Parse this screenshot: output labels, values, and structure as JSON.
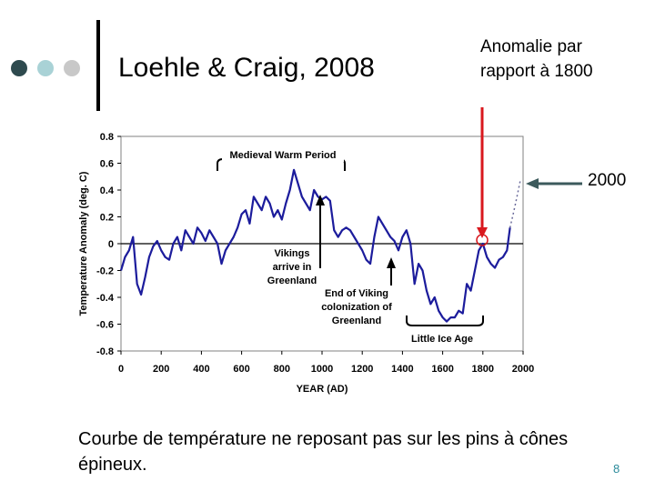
{
  "slide": {
    "title": "Loehle & Craig, 2008",
    "anomaly_note": "Anomalie par rapport à 1800",
    "label_2000": "2000",
    "caption": "Courbe de température ne reposant pas sur les pins à cônes épineux.",
    "page_number": "8",
    "dot_colors": [
      "#2e4a4e",
      "#a9d2d6",
      "#c8c8c8"
    ],
    "accent_color": "#d9181e",
    "arrow_color": "#3c5a5c"
  },
  "chart_data": {
    "type": "line",
    "title": "",
    "xlabel": "YEAR (AD)",
    "ylabel": "Temperature Anomaly (deg. C)",
    "xlim": [
      0,
      2000
    ],
    "ylim": [
      -0.8,
      0.8
    ],
    "x_ticks": [
      "0",
      "200",
      "400",
      "600",
      "800",
      "1000",
      "1200",
      "1400",
      "1600",
      "1800",
      "2000"
    ],
    "y_ticks": [
      "0.8",
      "0.6",
      "0.4",
      "0.2",
      "0",
      "-0.2",
      "-0.4",
      "-0.6",
      "-0.8"
    ],
    "grid": false,
    "line_color": "#1c1c9c",
    "series": [
      {
        "x": [
          0,
          20,
          40,
          60,
          80,
          100,
          120,
          140,
          160,
          180,
          200,
          220,
          240,
          260,
          280,
          300,
          320,
          340,
          360,
          380,
          400,
          420,
          440,
          460,
          480,
          500,
          520,
          540,
          560,
          580,
          600,
          620,
          640,
          660,
          680,
          700,
          720,
          740,
          760,
          780,
          800,
          820,
          840,
          860,
          880,
          900,
          920,
          940,
          960,
          980,
          1000,
          1020,
          1040,
          1060,
          1080,
          1100,
          1120,
          1140,
          1160,
          1180,
          1200,
          1220,
          1240,
          1260,
          1280,
          1300,
          1320,
          1340,
          1360,
          1380,
          1400,
          1420,
          1440,
          1460,
          1480,
          1500,
          1520,
          1540,
          1560,
          1580,
          1600,
          1620,
          1640,
          1660,
          1680,
          1700,
          1720,
          1740,
          1760,
          1780,
          1800,
          1820,
          1840,
          1860,
          1880,
          1900,
          1920,
          1935
        ],
        "y": [
          -0.2,
          -0.1,
          -0.05,
          0.05,
          -0.3,
          -0.38,
          -0.25,
          -0.1,
          -0.02,
          0.02,
          -0.05,
          -0.1,
          -0.12,
          0.0,
          0.05,
          -0.05,
          0.1,
          0.05,
          0.0,
          0.12,
          0.08,
          0.02,
          0.1,
          0.05,
          0.0,
          -0.15,
          -0.05,
          0.0,
          0.05,
          0.12,
          0.22,
          0.25,
          0.15,
          0.35,
          0.3,
          0.25,
          0.35,
          0.3,
          0.2,
          0.25,
          0.18,
          0.3,
          0.4,
          0.55,
          0.45,
          0.35,
          0.3,
          0.25,
          0.4,
          0.35,
          0.33,
          0.35,
          0.32,
          0.1,
          0.05,
          0.1,
          0.12,
          0.1,
          0.05,
          0.0,
          -0.05,
          -0.12,
          -0.15,
          0.05,
          0.2,
          0.15,
          0.1,
          0.05,
          0.02,
          -0.05,
          0.05,
          0.1,
          0.0,
          -0.3,
          -0.15,
          -0.2,
          -0.35,
          -0.45,
          -0.4,
          -0.5,
          -0.55,
          -0.58,
          -0.55,
          -0.55,
          -0.5,
          -0.52,
          -0.3,
          -0.35,
          -0.2,
          -0.05,
          0.0,
          -0.1,
          -0.15,
          -0.18,
          -0.12,
          -0.1,
          -0.05,
          0.12
        ]
      }
    ],
    "annotations": [
      {
        "text": "Medieval Warm Period"
      },
      {
        "text": "Vikings arrive in Greenland",
        "lines": [
          "Vikings",
          "arrive in",
          "Greenland"
        ]
      },
      {
        "text": "End of Viking colonization of Greenland",
        "lines": [
          "End of Viking",
          "colonization of",
          "Greenland"
        ]
      },
      {
        "text": "Little Ice Age"
      }
    ]
  }
}
